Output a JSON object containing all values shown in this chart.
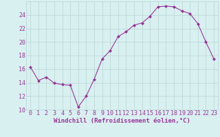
{
  "x": [
    0,
    1,
    2,
    3,
    4,
    5,
    6,
    7,
    8,
    9,
    10,
    11,
    12,
    13,
    14,
    15,
    16,
    17,
    18,
    19,
    20,
    21,
    22,
    23
  ],
  "y": [
    16.3,
    14.3,
    14.8,
    13.9,
    13.7,
    13.6,
    10.4,
    12.0,
    14.5,
    17.5,
    18.7,
    20.8,
    21.5,
    22.5,
    22.8,
    23.8,
    25.2,
    25.3,
    25.2,
    24.6,
    24.2,
    22.7,
    20.0,
    17.5
  ],
  "line_color": "#993399",
  "marker": "D",
  "marker_size": 2.0,
  "bg_color": "#d8f0f0",
  "grid_color": "#b8d4d4",
  "xlabel": "Windchill (Refroidissement éolien,°C)",
  "xlabel_fontsize": 6.5,
  "tick_fontsize": 6.0,
  "tick_label_color": "#993399",
  "axis_label_color": "#993399",
  "ylim": [
    10,
    26
  ],
  "xlim": [
    -0.5,
    23.5
  ],
  "yticks": [
    10,
    12,
    14,
    16,
    18,
    20,
    22,
    24
  ],
  "xticks": [
    0,
    1,
    2,
    3,
    4,
    5,
    6,
    7,
    8,
    9,
    10,
    11,
    12,
    13,
    14,
    15,
    16,
    17,
    18,
    19,
    20,
    21,
    22,
    23
  ]
}
